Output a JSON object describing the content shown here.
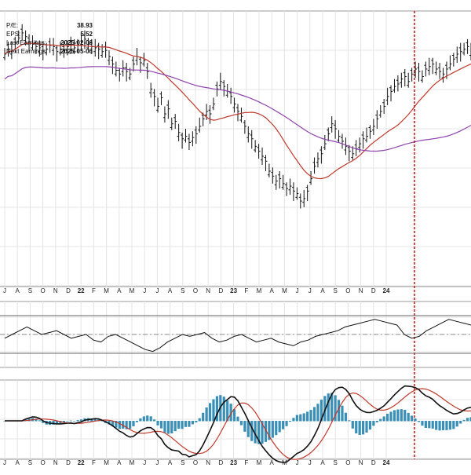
{
  "fundamentals": {
    "pe_label": "P/E:",
    "pe_value": "38.93",
    "eps_label": "EPS:",
    "eps_value": "5.52",
    "last_earnings_label": "Last Earnings:",
    "last_earnings_value": "2025-02-06",
    "next_earnings_label": "Next Earnings:",
    "next_earnings_value": "2025-05-06"
  },
  "chart_data": [
    {
      "type": "ohlc",
      "panel": "price",
      "x_tick_labels": [
        "J",
        "A",
        "S",
        "O",
        "N",
        "D",
        "22",
        "F",
        "M",
        "A",
        "M",
        "J",
        "J",
        "A",
        "S",
        "O",
        "N",
        "D",
        "23",
        "F",
        "M",
        "A",
        "M",
        "J",
        "J",
        "A",
        "S",
        "O",
        "N",
        "D",
        "24"
      ],
      "bars_close": [
        38,
        42,
        41,
        47,
        51,
        55,
        52,
        48,
        46,
        44,
        43,
        41,
        42,
        45,
        44,
        40,
        42,
        41,
        44,
        46,
        43,
        45,
        48,
        50,
        46,
        44,
        43,
        42,
        40,
        41,
        36,
        30,
        25,
        22,
        27,
        24,
        22,
        30,
        36,
        31,
        33,
        24,
        10,
        4,
        -4,
        3,
        -10,
        -6,
        -18,
        -16,
        -25,
        -30,
        -28,
        -33,
        -29,
        -26,
        -20,
        -14,
        -8,
        -10,
        -2,
        10,
        16,
        12,
        8,
        4,
        -2,
        -8,
        -12,
        -20,
        -26,
        -30,
        -36,
        -40,
        -44,
        -48,
        -56,
        -60,
        -64,
        -62,
        -66,
        -70,
        -68,
        -72,
        -74,
        -80,
        -78,
        -72,
        -62,
        -52,
        -46,
        -42,
        -34,
        -26,
        -18,
        -22,
        -28,
        -32,
        -36,
        -40,
        -42,
        -38,
        -34,
        -30,
        -28,
        -24,
        -20,
        -14,
        -8,
        -4,
        4,
        8,
        12,
        14,
        18,
        20,
        16,
        22,
        26,
        24,
        20,
        26,
        28,
        30,
        26,
        24,
        22,
        26,
        30,
        34,
        38,
        40,
        42,
        44,
        40
      ],
      "overlays": [
        {
          "kind": "moving-average-short",
          "color": "#c0392b"
        },
        {
          "kind": "moving-average-long",
          "color": "#8e44ad"
        }
      ],
      "event_marker_label": "earnings",
      "event_marker_color": "#cc0000"
    },
    {
      "type": "line",
      "panel": "oscillator",
      "values": [
        0.4,
        0.5,
        0.6,
        0.7,
        0.6,
        0.5,
        0.55,
        0.6,
        0.5,
        0.4,
        0.45,
        0.5,
        0.35,
        0.3,
        0.45,
        0.5,
        0.4,
        0.3,
        0.2,
        0.1,
        0.05,
        0.15,
        0.3,
        0.4,
        0.5,
        0.45,
        0.5,
        0.55,
        0.4,
        0.3,
        0.35,
        0.45,
        0.5,
        0.4,
        0.3,
        0.35,
        0.4,
        0.3,
        0.25,
        0.2,
        0.3,
        0.35,
        0.45,
        0.5,
        0.55,
        0.6,
        0.7,
        0.75,
        0.8,
        0.85,
        0.9,
        0.85,
        0.8,
        0.75,
        0.5,
        0.4,
        0.45,
        0.6,
        0.7,
        0.8,
        0.9,
        0.85,
        0.8,
        0.75
      ]
    },
    {
      "type": "macd",
      "panel": "macd",
      "macd_color": "#111111",
      "signal_color": "#c0392b",
      "histogram_color": "#3a8fb7"
    }
  ]
}
